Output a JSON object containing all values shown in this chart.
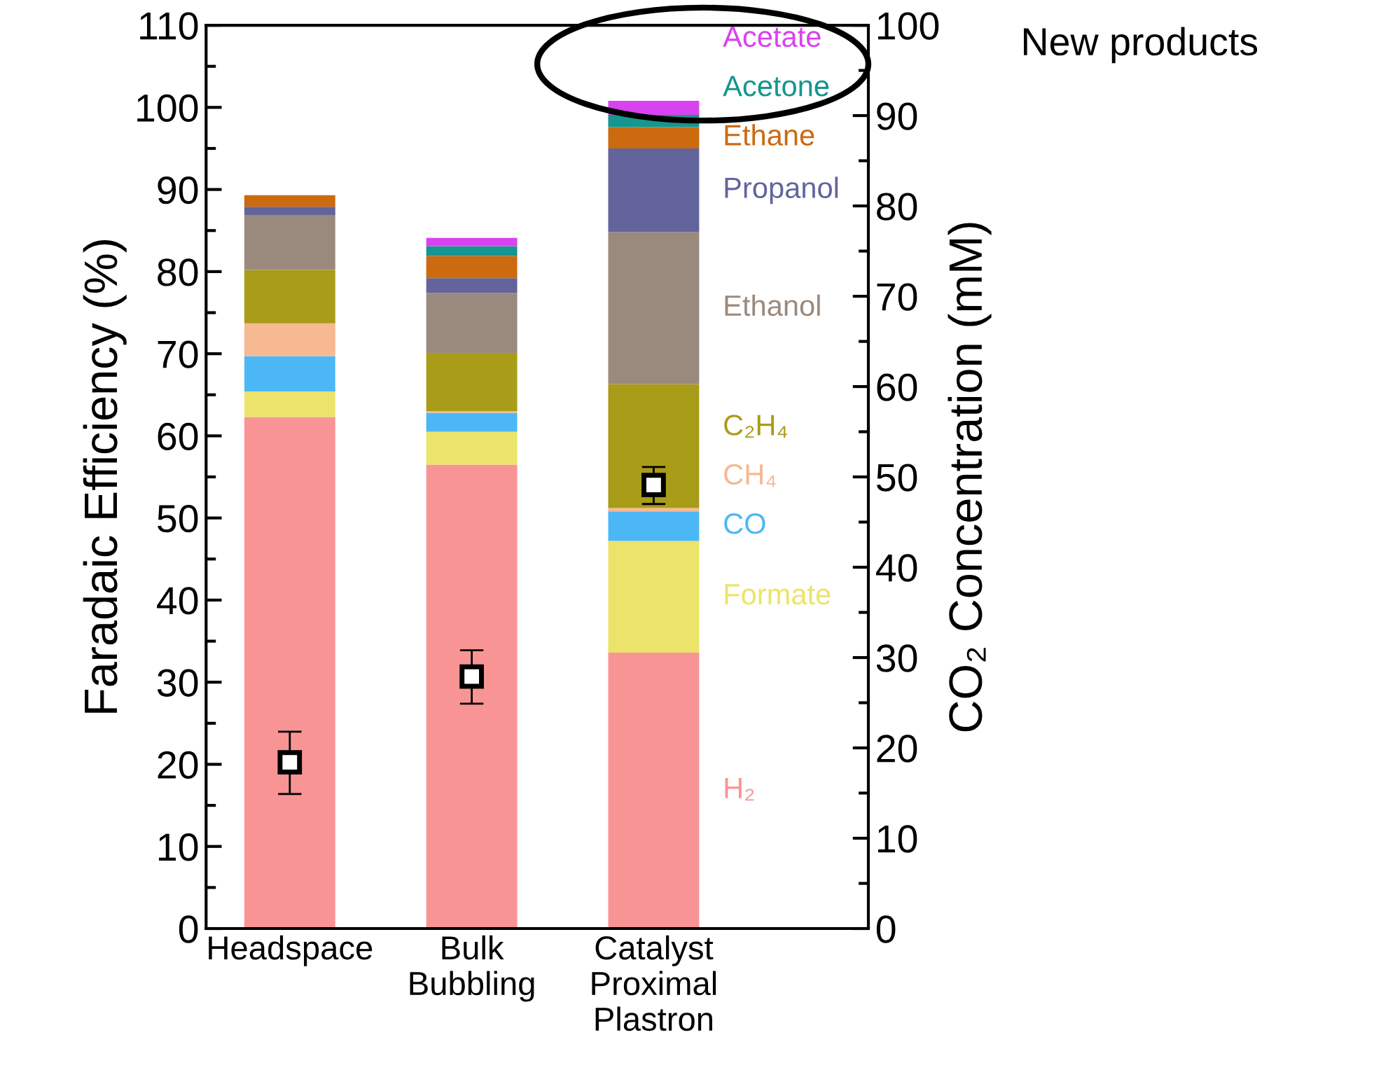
{
  "chart_data": {
    "type": "bar",
    "stacked": true,
    "categories": [
      "Headspace",
      "Bulk\nBubbling",
      "Catalyst\nProximal\nPlastron"
    ],
    "ylabel": "Faradaic Efficiency (%)",
    "y2label": "CO₂ Concentration (mM)",
    "ylim": [
      0,
      110
    ],
    "yticks": [
      0,
      {
        "value": 5,
        "label": null
      },
      10,
      {
        "value": 15,
        "label": null
      },
      20,
      {
        "value": 25,
        "label": null
      },
      30,
      {
        "value": 35,
        "label": null
      },
      40,
      {
        "value": 45,
        "label": null
      },
      50,
      {
        "value": 55,
        "label": null
      },
      60,
      {
        "value": 65,
        "label": null
      },
      70,
      {
        "value": 75,
        "label": null
      },
      80,
      {
        "value": 85,
        "label": null
      },
      90,
      {
        "value": 95,
        "label": null
      },
      100,
      {
        "value": 105,
        "label": null
      },
      110
    ],
    "y2lim": [
      0,
      100
    ],
    "y2ticks": [
      0,
      {
        "value": 5,
        "label": null
      },
      10,
      {
        "value": 15,
        "label": null
      },
      20,
      {
        "value": 25,
        "label": null
      },
      30,
      {
        "value": 35,
        "label": null
      },
      40,
      {
        "value": 45,
        "label": null
      },
      50,
      {
        "value": 55,
        "label": null
      },
      60,
      {
        "value": 65,
        "label": null
      },
      70,
      {
        "value": 75,
        "label": null
      },
      80,
      {
        "value": 85,
        "label": null
      },
      90,
      {
        "value": 95,
        "label": null
      },
      100
    ],
    "grid": false,
    "legend": false,
    "series": [
      {
        "name": "H₂",
        "color": "#f99495",
        "values": [
          62.3,
          56.5,
          33.6
        ]
      },
      {
        "name": "Formate",
        "color": "#ece46a",
        "values": [
          3.1,
          4.0,
          13.6
        ]
      },
      {
        "name": "CO",
        "color": "#4bb8f5",
        "values": [
          4.3,
          2.3,
          3.6
        ]
      },
      {
        "name": "CH₄",
        "color": "#f6b992",
        "values": [
          4.0,
          0.2,
          0.4
        ]
      },
      {
        "name": "C₂H₄",
        "color": "#a99c18",
        "values": [
          6.5,
          7.1,
          15.1
        ]
      },
      {
        "name": "Ethanol",
        "color": "#9a8a7e",
        "values": [
          6.7,
          7.3,
          18.5
        ]
      },
      {
        "name": "Propanol",
        "color": "#63649c",
        "values": [
          1.0,
          1.8,
          10.2
        ]
      },
      {
        "name": "Ethane",
        "color": "#cc6a10",
        "values": [
          1.4,
          2.7,
          2.6
        ]
      },
      {
        "name": "Acetone",
        "color": "#15968e",
        "values": [
          0,
          1.2,
          1.5
        ]
      },
      {
        "name": "Acetate",
        "color": "#d942f0",
        "values": [
          0,
          1.0,
          1.7
        ]
      },
      {
        "type": "scatter",
        "axis": "y2",
        "marker": "square",
        "color": "#000000",
        "values": [
          18.4,
          27.9,
          49.1
        ],
        "errors": [
          [
            14.9,
            21.8
          ],
          [
            24.9,
            30.8
          ],
          [
            47.0,
            51.1
          ]
        ]
      }
    ],
    "annotations": [
      "New products"
    ]
  }
}
